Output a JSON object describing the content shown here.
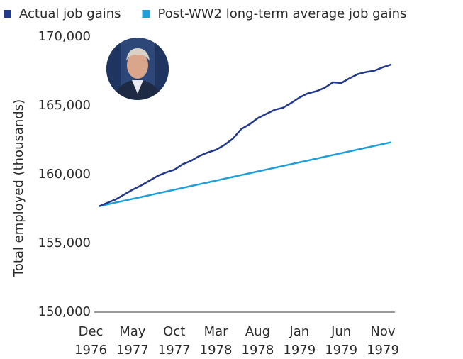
{
  "chart_data": {
    "type": "line",
    "y_label": "Total employed (thousands)",
    "categories": [
      "Dec 1976",
      null,
      null,
      null,
      null,
      "May 1977",
      null,
      null,
      null,
      null,
      "Oct 1977",
      null,
      null,
      null,
      null,
      "Mar 1978",
      null,
      null,
      null,
      null,
      "Aug 1978",
      null,
      null,
      null,
      null,
      "Jan 1979",
      null,
      null,
      null,
      null,
      "Jun 1979",
      null,
      null,
      null,
      null,
      "Nov 1979"
    ],
    "series": [
      {
        "name": "Actual job gains",
        "color": "#23398a",
        "values": [
          157700,
          157950,
          158200,
          158550,
          158900,
          159200,
          159550,
          159900,
          160150,
          160350,
          160750,
          161000,
          161350,
          161600,
          161800,
          162150,
          162600,
          163300,
          163650,
          164100,
          164400,
          164700,
          164850,
          165200,
          165600,
          165900,
          166050,
          166300,
          166700,
          166650,
          167000,
          167300,
          167450,
          167550,
          167800,
          168000
        ]
      },
      {
        "name": "Post-WW2 long-term average job gains",
        "color": "#1f9fd9",
        "values": [
          157700,
          157833,
          157966,
          158099,
          158231,
          158364,
          158497,
          158630,
          158763,
          158896,
          159029,
          159161,
          159294,
          159427,
          159560,
          159693,
          159826,
          159959,
          160091,
          160224,
          160357,
          160490,
          160623,
          160756,
          160889,
          161021,
          161154,
          161287,
          161420,
          161553,
          161686,
          161819,
          161951,
          162084,
          162217,
          162350
        ]
      }
    ],
    "ylim": [
      150000,
      170000
    ],
    "yticks": [
      {
        "value": 150000,
        "label": "150,000"
      },
      {
        "value": 155000,
        "label": "155,000"
      },
      {
        "value": 160000,
        "label": "160,000"
      },
      {
        "value": 165000,
        "label": "165,000"
      },
      {
        "value": 170000,
        "label": "170,000"
      }
    ],
    "grid": false
  }
}
